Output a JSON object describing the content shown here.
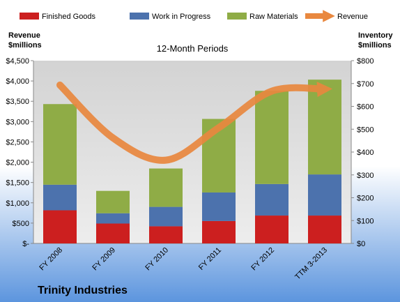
{
  "chart_data": {
    "type": "bar",
    "subtitle": "12-Month Periods",
    "company": "Trinity Industries",
    "left_axis_title": [
      "Revenue",
      "$millions"
    ],
    "right_axis_title": [
      "Inventory",
      "$millions"
    ],
    "categories": [
      "FY 2008",
      "FY 2009",
      "FY 2010",
      "FY 2011",
      "FY 2012",
      "TTM 3-2013"
    ],
    "left_ticks": [
      "$-",
      "$500",
      "$1,000",
      "$1,500",
      "$2,000",
      "$2,500",
      "$3,000",
      "$3,500",
      "$4,000",
      "$4,500"
    ],
    "right_ticks": [
      "$0",
      "$100",
      "$200",
      "$300",
      "$400",
      "$500",
      "$600",
      "$700",
      "$800"
    ],
    "left_ylim": [
      0,
      4500
    ],
    "right_ylim": [
      0,
      800
    ],
    "stacked": true,
    "series": [
      {
        "name": "Finished Goods",
        "axis": "right",
        "color": "#cc1f1f",
        "values": [
          145,
          87,
          75,
          98,
          122,
          122
        ]
      },
      {
        "name": "Work in Progress",
        "axis": "right",
        "color": "#4c72ad",
        "values": [
          112,
          45,
          85,
          125,
          138,
          180
        ]
      },
      {
        "name": "Raw Materials",
        "axis": "right",
        "color": "#8fac46",
        "values": [
          353,
          98,
          168,
          322,
          408,
          415
        ]
      },
      {
        "name": "Revenue",
        "axis": "left",
        "type": "line",
        "color": "#e9883f",
        "values": [
          3900,
          2600,
          2050,
          2850,
          3750,
          3800
        ]
      }
    ],
    "legend_position": "top",
    "grid": false
  }
}
